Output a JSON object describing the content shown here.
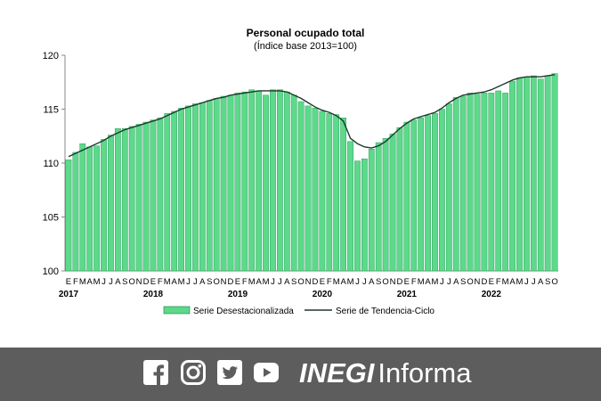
{
  "chart_data": {
    "type": "bar",
    "title": "Personal ocupado total",
    "subtitle": "(Índice base 2013=100)",
    "xlabel": "",
    "ylabel": "",
    "ylim": [
      100,
      120
    ],
    "yticks": [
      "100",
      "105",
      "110",
      "115",
      "120"
    ],
    "grid": false,
    "legend_position": "bottom",
    "month_labels": [
      "E",
      "F",
      "M",
      "A",
      "M",
      "J",
      "J",
      "A",
      "S",
      "O",
      "N",
      "D"
    ],
    "years": [
      "2017",
      "2018",
      "2019",
      "2020",
      "2021",
      "2022"
    ],
    "series": [
      {
        "name": "Serie Desestacionalizada",
        "type": "bar",
        "color": "#5cd98a",
        "values": [
          110.3,
          111.0,
          111.8,
          111.5,
          111.6,
          112.2,
          112.6,
          113.2,
          113.2,
          113.4,
          113.6,
          113.8,
          114.0,
          114.2,
          114.6,
          114.8,
          115.1,
          115.3,
          115.5,
          115.6,
          115.8,
          116.0,
          116.2,
          116.3,
          116.5,
          116.6,
          116.8,
          116.7,
          116.3,
          116.8,
          116.8,
          116.6,
          116.3,
          115.7,
          115.3,
          115.1,
          114.8,
          114.6,
          114.5,
          114.2,
          112.0,
          110.2,
          110.4,
          111.3,
          111.9,
          112.3,
          112.7,
          113.3,
          113.8,
          114.0,
          114.2,
          114.4,
          114.6,
          115.0,
          115.5,
          116.1,
          116.2,
          116.5,
          116.4,
          116.5,
          116.5,
          116.7,
          116.5,
          117.6,
          117.9,
          118.0,
          118.1,
          117.8,
          118.1,
          118.3
        ]
      },
      {
        "name": "Serie de Tendencia-Ciclo",
        "type": "line",
        "color": "#1b3a2c",
        "values": [
          110.6,
          110.9,
          111.2,
          111.5,
          111.8,
          112.1,
          112.5,
          112.8,
          113.1,
          113.3,
          113.5,
          113.7,
          113.9,
          114.1,
          114.4,
          114.7,
          115.0,
          115.2,
          115.4,
          115.6,
          115.8,
          116.0,
          116.1,
          116.3,
          116.4,
          116.5,
          116.6,
          116.7,
          116.7,
          116.7,
          116.7,
          116.6,
          116.3,
          116.0,
          115.6,
          115.2,
          114.9,
          114.7,
          114.4,
          113.9,
          112.3,
          111.8,
          111.5,
          111.4,
          111.6,
          112.0,
          112.6,
          113.2,
          113.7,
          114.1,
          114.3,
          114.5,
          114.7,
          115.1,
          115.6,
          116.0,
          116.3,
          116.4,
          116.5,
          116.6,
          116.8,
          117.1,
          117.4,
          117.7,
          117.9,
          118.0,
          118.0,
          118.0,
          118.1,
          118.2
        ]
      }
    ]
  },
  "footer": {
    "icons": [
      "facebook-icon",
      "instagram-icon",
      "twitter-icon",
      "youtube-icon"
    ],
    "brand_bold": "INEGI",
    "brand_light": "Informa",
    "background": "#5d5d5d"
  }
}
